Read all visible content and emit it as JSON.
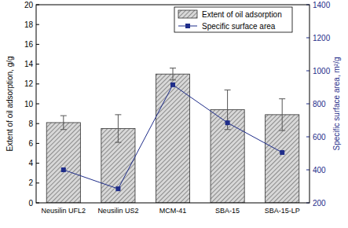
{
  "chart_data": {
    "type": "bar",
    "categories": [
      "Neusilin UFL2",
      "Neusilin US2",
      "MCM-41",
      "SBA-15",
      "SBA-15-LP"
    ],
    "series": [
      {
        "name": "Extent of oil adsorption",
        "type": "bar",
        "color": "#9a9a9a",
        "values": [
          8.1,
          7.5,
          13.0,
          9.4,
          8.9
        ],
        "errors": [
          0.7,
          1.4,
          0.6,
          2.0,
          1.6
        ]
      },
      {
        "name": "Specific surface area",
        "type": "line",
        "axis": "y2",
        "color": "#1f2d8a",
        "marker": "square",
        "values": [
          400,
          285,
          915,
          685,
          505
        ]
      }
    ],
    "y_label": "Extent of oil adsorption, g/g",
    "y2_label": "Specific surface area, m²/g",
    "ylim": [
      0,
      20
    ],
    "yticks": [
      0,
      2,
      4,
      6,
      8,
      10,
      12,
      14,
      16,
      18,
      20
    ],
    "y2lim": [
      200,
      1400
    ],
    "y2ticks": [
      200,
      400,
      600,
      800,
      1000,
      1200,
      1400
    ],
    "legend": "top",
    "grid": false
  }
}
